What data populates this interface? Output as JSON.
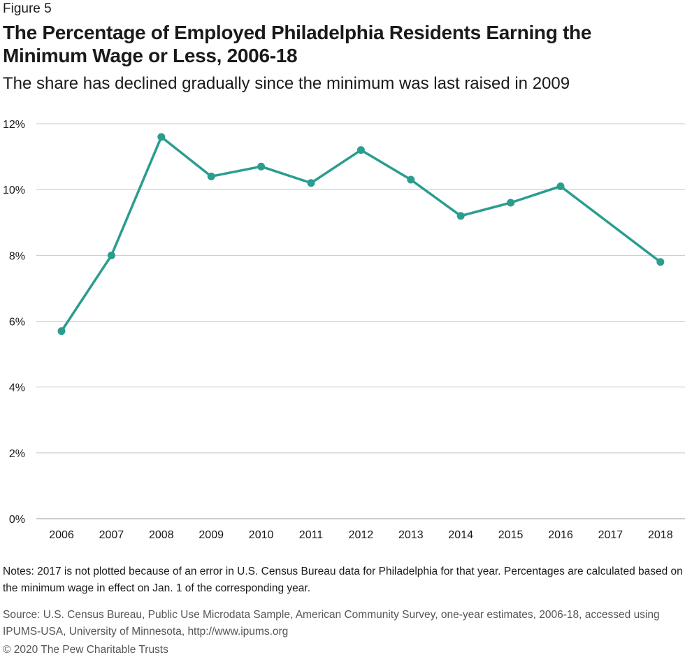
{
  "header": {
    "figure_label": "Figure 5",
    "title": "The Percentage of Employed Philadelphia Residents Earning the Minimum Wage or Less, 2006-18",
    "subtitle": "The share has declined gradually since the minimum was last raised in 2009"
  },
  "footer": {
    "notes": "Notes: 2017 is not plotted because of an error in U.S. Census Bureau data for Philadelphia for that year. Percentages are calculated based on the minimum wage in effect on Jan. 1 of the corresponding year.",
    "source": "Source: U.S. Census Bureau, Public Use Microdata Sample, American Community Survey, one-year estimates, 2006-18, accessed using IPUMS-USA, University of Minnesota, http://www.ipums.org",
    "copyright": "© 2020 The Pew Charitable Trusts"
  },
  "colors": {
    "line": "#2a9d8f",
    "grid": "#c8c8c8"
  },
  "chart_data": {
    "type": "line",
    "title": "The Percentage of Employed Philadelphia Residents Earning the Minimum Wage or Less, 2006-18",
    "subtitle": "The share has declined gradually since the minimum was last raised in 2009",
    "categories": [
      "2006",
      "2007",
      "2008",
      "2009",
      "2010",
      "2011",
      "2012",
      "2013",
      "2014",
      "2015",
      "2016",
      "2017",
      "2018"
    ],
    "series": [
      {
        "values": [
          5.7,
          8.0,
          11.6,
          10.4,
          10.7,
          10.2,
          11.2,
          10.3,
          9.2,
          9.6,
          10.1,
          null,
          7.8
        ]
      }
    ],
    "ylim": [
      0,
      12
    ],
    "yticks": [
      "0%",
      "2%",
      "4%",
      "6%",
      "8%",
      "10%",
      "12%"
    ],
    "ytick_values": [
      0,
      2,
      4,
      6,
      8,
      10,
      12
    ],
    "xlabel": "",
    "ylabel": "",
    "grid": true,
    "legend": "none"
  }
}
